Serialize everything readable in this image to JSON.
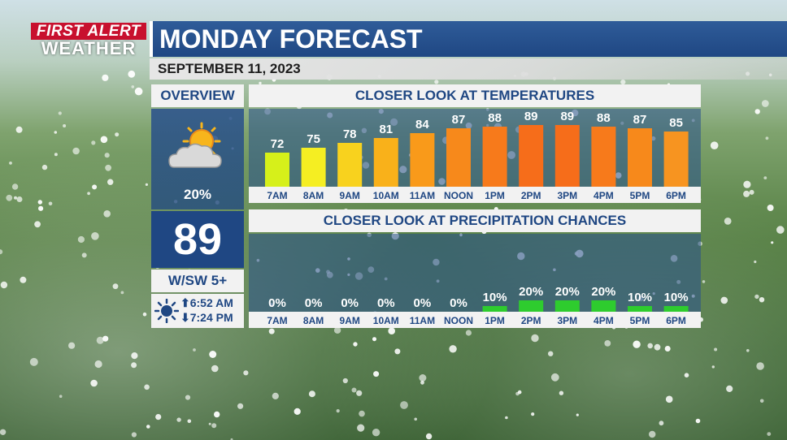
{
  "branding": {
    "line1": "FIRST ALERT",
    "line2": "WEATHER",
    "red": "#c8102e"
  },
  "header": {
    "title": "MONDAY FORECAST",
    "date": "SEPTEMBER 11, 2023"
  },
  "overview": {
    "heading": "OVERVIEW",
    "icon": "partly-cloudy-icon",
    "precip": "20%",
    "high": "89",
    "wind": "W/SW  5+",
    "sunrise": "6:52 AM",
    "sunset": "7:24 PM",
    "sunrise_icon": "up-arrow-icon",
    "sunset_icon": "down-arrow-icon"
  },
  "temps_panel": {
    "heading": "CLOSER LOOK AT TEMPERATURES"
  },
  "precip_panel": {
    "heading": "CLOSER LOOK AT PRECIPITATION CHANCES"
  },
  "chart_data": [
    {
      "type": "bar",
      "title": "CLOSER LOOK AT TEMPERATURES",
      "categories": [
        "7AM",
        "8AM",
        "9AM",
        "10AM",
        "11AM",
        "NOON",
        "1PM",
        "2PM",
        "3PM",
        "4PM",
        "5PM",
        "6PM"
      ],
      "values": [
        72,
        75,
        78,
        81,
        84,
        87,
        88,
        89,
        89,
        88,
        87,
        85
      ],
      "colors": [
        "#d6f01a",
        "#f5ee22",
        "#f8d21e",
        "#f9b11a",
        "#f99a1a",
        "#f7891b",
        "#f77a1b",
        "#f66d1a",
        "#f66d1a",
        "#f77a1b",
        "#f7891b",
        "#f79420"
      ],
      "ylim": [
        60,
        90
      ]
    },
    {
      "type": "bar",
      "title": "CLOSER LOOK AT PRECIPITATION CHANCES",
      "categories": [
        "7AM",
        "8AM",
        "9AM",
        "10AM",
        "11AM",
        "NOON",
        "1PM",
        "2PM",
        "3PM",
        "4PM",
        "5PM",
        "6PM"
      ],
      "values": [
        0,
        0,
        0,
        0,
        0,
        0,
        10,
        20,
        20,
        20,
        10,
        10
      ],
      "labels": [
        "0%",
        "0%",
        "0%",
        "0%",
        "0%",
        "0%",
        "10%",
        "20%",
        "20%",
        "20%",
        "10%",
        "10%"
      ],
      "color": "#2ecc2e",
      "ylim": [
        0,
        100
      ]
    }
  ]
}
